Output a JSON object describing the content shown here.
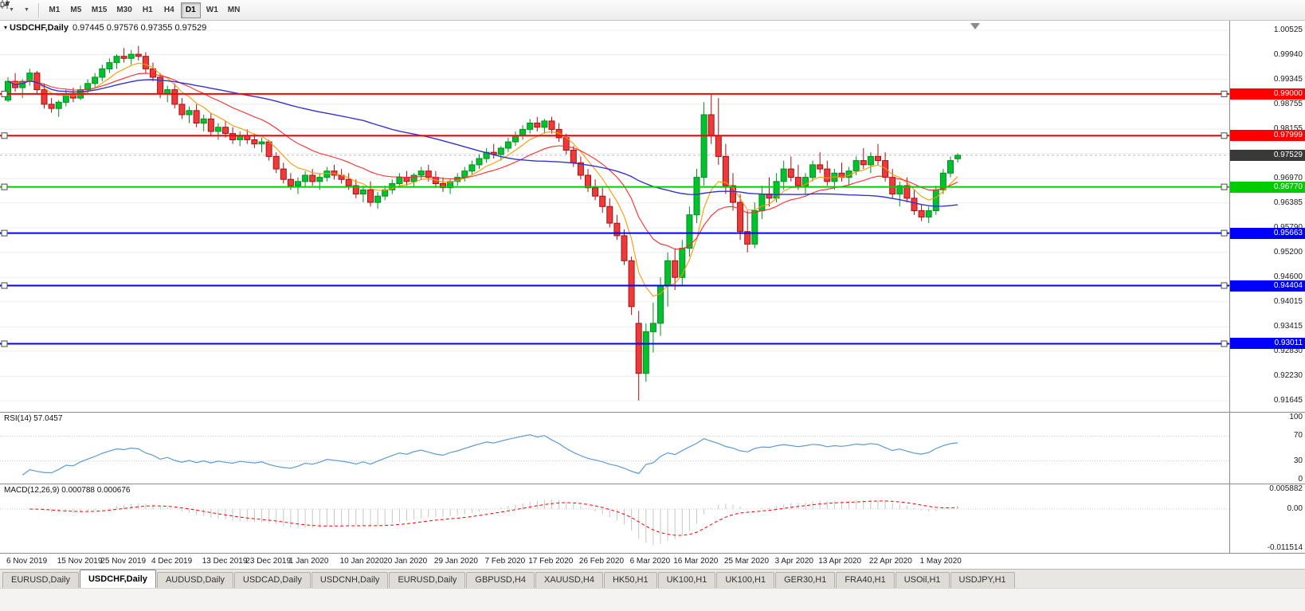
{
  "toolbar": {
    "icon_buttons": [
      {
        "icon": "line-chart-icon"
      },
      {
        "icon": "candlestick-chart-icon"
      }
    ],
    "timeframes": [
      {
        "label": "M1",
        "active": false
      },
      {
        "label": "M5",
        "active": false
      },
      {
        "label": "M15",
        "active": false
      },
      {
        "label": "M30",
        "active": false
      },
      {
        "label": "H1",
        "active": false
      },
      {
        "label": "H4",
        "active": false
      },
      {
        "label": "D1",
        "active": true
      },
      {
        "label": "W1",
        "active": false
      },
      {
        "label": "MN",
        "active": false
      }
    ]
  },
  "chart": {
    "title_symbol": "USDCHF,Daily",
    "title_ohlc": "0.97445 0.97576 0.97355 0.97529"
  },
  "chart_data": {
    "type": "candlestick",
    "symbol": "USDCHF",
    "timeframe": "Daily",
    "y_axis": {
      "max": 1.00525,
      "min": 0.91645,
      "labels": [
        "1.00525",
        "0.99940",
        "0.99345",
        "0.98755",
        "0.98155",
        "0.97570",
        "0.96970",
        "0.96385",
        "0.95790",
        "0.95200",
        "0.94600",
        "0.94015",
        "0.93415",
        "0.92830",
        "0.92230",
        "0.91645"
      ]
    },
    "x_labels": [
      {
        "i": 0,
        "t": "6 Nov 2019"
      },
      {
        "i": 7,
        "t": "15 Nov 2019"
      },
      {
        "i": 13,
        "t": "25 Nov 2019"
      },
      {
        "i": 20,
        "t": "4 Dec 2019"
      },
      {
        "i": 27,
        "t": "13 Dec 2019"
      },
      {
        "i": 33,
        "t": "23 Dec 2019"
      },
      {
        "i": 39,
        "t": "1 Jan 2020"
      },
      {
        "i": 46,
        "t": "10 Jan 2020"
      },
      {
        "i": 52,
        "t": "20 Jan 2020"
      },
      {
        "i": 59,
        "t": "29 Jan 2020"
      },
      {
        "i": 66,
        "t": "7 Feb 2020"
      },
      {
        "i": 72,
        "t": "17 Feb 2020"
      },
      {
        "i": 79,
        "t": "26 Feb 2020"
      },
      {
        "i": 86,
        "t": "6 Mar 2020"
      },
      {
        "i": 92,
        "t": "16 Mar 2020"
      },
      {
        "i": 99,
        "t": "25 Mar 2020"
      },
      {
        "i": 106,
        "t": "3 Apr 2020"
      },
      {
        "i": 112,
        "t": "13 Apr 2020"
      },
      {
        "i": 119,
        "t": "22 Apr 2020"
      },
      {
        "i": 126,
        "t": "1 May 2020"
      }
    ],
    "candle_colors": {
      "up_fill": "#00c22e",
      "up_stroke": "#008f1f",
      "down_fill": "#ed3b3b",
      "down_stroke": "#a81010"
    },
    "ohlc": [
      [
        0.9885,
        0.994,
        0.988,
        0.993
      ],
      [
        0.993,
        0.995,
        0.9905,
        0.9915
      ],
      [
        0.9915,
        0.9935,
        0.989,
        0.993
      ],
      [
        0.993,
        0.996,
        0.992,
        0.995
      ],
      [
        0.995,
        0.9955,
        0.99,
        0.991
      ],
      [
        0.991,
        0.9925,
        0.9865,
        0.9875
      ],
      [
        0.9875,
        0.989,
        0.9855,
        0.9865
      ],
      [
        0.9865,
        0.9885,
        0.9845,
        0.988
      ],
      [
        0.988,
        0.991,
        0.987,
        0.99
      ],
      [
        0.99,
        0.9915,
        0.988,
        0.989
      ],
      [
        0.989,
        0.992,
        0.9885,
        0.991
      ],
      [
        0.991,
        0.9935,
        0.99,
        0.9925
      ],
      [
        0.9925,
        0.995,
        0.9915,
        0.994
      ],
      [
        0.994,
        0.997,
        0.993,
        0.996
      ],
      [
        0.996,
        0.9985,
        0.995,
        0.9975
      ],
      [
        0.9975,
        0.9995,
        0.996,
        0.999
      ],
      [
        0.999,
        1.001,
        0.9975,
        0.9985
      ],
      [
        0.9985,
        1.0005,
        0.997,
        0.9995
      ],
      [
        0.9995,
        1.0015,
        0.998,
        0.999
      ],
      [
        0.999,
        1.0,
        0.995,
        0.996
      ],
      [
        0.996,
        0.9975,
        0.993,
        0.994
      ],
      [
        0.994,
        0.995,
        0.989,
        0.99
      ],
      [
        0.99,
        0.992,
        0.988,
        0.991
      ],
      [
        0.991,
        0.9925,
        0.9865,
        0.9875
      ],
      [
        0.9875,
        0.989,
        0.984,
        0.985
      ],
      [
        0.985,
        0.987,
        0.983,
        0.986
      ],
      [
        0.986,
        0.9875,
        0.982,
        0.983
      ],
      [
        0.983,
        0.985,
        0.981,
        0.984
      ],
      [
        0.984,
        0.9855,
        0.98,
        0.981
      ],
      [
        0.981,
        0.983,
        0.979,
        0.982
      ],
      [
        0.982,
        0.9835,
        0.9795,
        0.9805
      ],
      [
        0.9805,
        0.982,
        0.978,
        0.979
      ],
      [
        0.979,
        0.981,
        0.9775,
        0.98
      ],
      [
        0.98,
        0.9815,
        0.978,
        0.979
      ],
      [
        0.979,
        0.9805,
        0.977,
        0.978
      ],
      [
        0.978,
        0.9795,
        0.976,
        0.9785
      ],
      [
        0.9785,
        0.979,
        0.974,
        0.975
      ],
      [
        0.975,
        0.976,
        0.971,
        0.972
      ],
      [
        0.972,
        0.9735,
        0.9685,
        0.9695
      ],
      [
        0.9695,
        0.971,
        0.967,
        0.968
      ],
      [
        0.968,
        0.97,
        0.966,
        0.969
      ],
      [
        0.969,
        0.9715,
        0.9675,
        0.9705
      ],
      [
        0.9705,
        0.972,
        0.968,
        0.969
      ],
      [
        0.969,
        0.971,
        0.967,
        0.97
      ],
      [
        0.97,
        0.9725,
        0.969,
        0.9715
      ],
      [
        0.9715,
        0.973,
        0.9695,
        0.9705
      ],
      [
        0.9705,
        0.972,
        0.9685,
        0.9695
      ],
      [
        0.9695,
        0.971,
        0.967,
        0.968
      ],
      [
        0.968,
        0.9695,
        0.965,
        0.966
      ],
      [
        0.966,
        0.968,
        0.964,
        0.967
      ],
      [
        0.967,
        0.969,
        0.963,
        0.964
      ],
      [
        0.964,
        0.9665,
        0.9625,
        0.9655
      ],
      [
        0.9655,
        0.968,
        0.9645,
        0.967
      ],
      [
        0.967,
        0.9695,
        0.966,
        0.9685
      ],
      [
        0.9685,
        0.971,
        0.9675,
        0.97
      ],
      [
        0.97,
        0.9715,
        0.968,
        0.969
      ],
      [
        0.969,
        0.971,
        0.9675,
        0.9705
      ],
      [
        0.9705,
        0.9725,
        0.9695,
        0.9715
      ],
      [
        0.9715,
        0.973,
        0.969,
        0.97
      ],
      [
        0.97,
        0.9715,
        0.9675,
        0.9685
      ],
      [
        0.9685,
        0.97,
        0.9665,
        0.9675
      ],
      [
        0.9675,
        0.9695,
        0.966,
        0.969
      ],
      [
        0.969,
        0.971,
        0.968,
        0.97
      ],
      [
        0.97,
        0.9725,
        0.969,
        0.9715
      ],
      [
        0.9715,
        0.974,
        0.9705,
        0.973
      ],
      [
        0.973,
        0.9755,
        0.972,
        0.9745
      ],
      [
        0.9745,
        0.977,
        0.9735,
        0.976
      ],
      [
        0.976,
        0.978,
        0.9745,
        0.9755
      ],
      [
        0.9755,
        0.9775,
        0.974,
        0.977
      ],
      [
        0.977,
        0.9795,
        0.976,
        0.9785
      ],
      [
        0.9785,
        0.981,
        0.9775,
        0.98
      ],
      [
        0.98,
        0.9825,
        0.979,
        0.9815
      ],
      [
        0.9815,
        0.984,
        0.9805,
        0.983
      ],
      [
        0.983,
        0.9845,
        0.981,
        0.982
      ],
      [
        0.982,
        0.984,
        0.9805,
        0.9835
      ],
      [
        0.9835,
        0.9845,
        0.9805,
        0.9815
      ],
      [
        0.9815,
        0.983,
        0.9785,
        0.9795
      ],
      [
        0.9795,
        0.9805,
        0.9755,
        0.9765
      ],
      [
        0.9765,
        0.9775,
        0.9725,
        0.9735
      ],
      [
        0.9735,
        0.975,
        0.9695,
        0.9705
      ],
      [
        0.9705,
        0.972,
        0.9665,
        0.9675
      ],
      [
        0.9675,
        0.9695,
        0.9645,
        0.9655
      ],
      [
        0.9655,
        0.9675,
        0.9615,
        0.963
      ],
      [
        0.963,
        0.965,
        0.958,
        0.959
      ],
      [
        0.959,
        0.961,
        0.955,
        0.956
      ],
      [
        0.956,
        0.9575,
        0.949,
        0.95
      ],
      [
        0.95,
        0.951,
        0.937,
        0.939
      ],
      [
        0.935,
        0.938,
        0.9165,
        0.923
      ],
      [
        0.923,
        0.935,
        0.921,
        0.933
      ],
      [
        0.933,
        0.94,
        0.928,
        0.935
      ],
      [
        0.935,
        0.946,
        0.932,
        0.944
      ],
      [
        0.944,
        0.952,
        0.939,
        0.95
      ],
      [
        0.95,
        0.953,
        0.943,
        0.946
      ],
      [
        0.946,
        0.955,
        0.944,
        0.953
      ],
      [
        0.953,
        0.963,
        0.951,
        0.961
      ],
      [
        0.961,
        0.972,
        0.959,
        0.97
      ],
      [
        0.97,
        0.988,
        0.968,
        0.985
      ],
      [
        0.985,
        0.9901,
        0.978,
        0.98
      ],
      [
        0.98,
        0.989,
        0.973,
        0.975
      ],
      [
        0.975,
        0.978,
        0.966,
        0.968
      ],
      [
        0.968,
        0.971,
        0.962,
        0.964
      ],
      [
        0.964,
        0.966,
        0.955,
        0.957
      ],
      [
        0.957,
        0.962,
        0.952,
        0.954
      ],
      [
        0.954,
        0.964,
        0.953,
        0.962
      ],
      [
        0.962,
        0.968,
        0.96,
        0.966
      ],
      [
        0.966,
        0.97,
        0.963,
        0.965
      ],
      [
        0.965,
        0.971,
        0.964,
        0.969
      ],
      [
        0.969,
        0.974,
        0.967,
        0.972
      ],
      [
        0.972,
        0.975,
        0.969,
        0.97
      ],
      [
        0.97,
        0.973,
        0.967,
        0.968
      ],
      [
        0.968,
        0.971,
        0.966,
        0.97
      ],
      [
        0.97,
        0.974,
        0.969,
        0.973
      ],
      [
        0.973,
        0.976,
        0.971,
        0.972
      ],
      [
        0.972,
        0.974,
        0.968,
        0.969
      ],
      [
        0.969,
        0.972,
        0.967,
        0.971
      ],
      [
        0.971,
        0.9735,
        0.969,
        0.97
      ],
      [
        0.97,
        0.9725,
        0.968,
        0.9715
      ],
      [
        0.9715,
        0.975,
        0.9705,
        0.974
      ],
      [
        0.974,
        0.977,
        0.972,
        0.973
      ],
      [
        0.973,
        0.976,
        0.971,
        0.975
      ],
      [
        0.975,
        0.978,
        0.973,
        0.974
      ],
      [
        0.974,
        0.976,
        0.969,
        0.97
      ],
      [
        0.97,
        0.972,
        0.965,
        0.966
      ],
      [
        0.966,
        0.969,
        0.963,
        0.968
      ],
      [
        0.968,
        0.97,
        0.964,
        0.965
      ],
      [
        0.965,
        0.967,
        0.961,
        0.962
      ],
      [
        0.962,
        0.9635,
        0.9595,
        0.9605
      ],
      [
        0.9605,
        0.963,
        0.959,
        0.962
      ],
      [
        0.962,
        0.968,
        0.961,
        0.967
      ],
      [
        0.967,
        0.972,
        0.966,
        0.971
      ],
      [
        0.971,
        0.975,
        0.97,
        0.974
      ],
      [
        0.97445,
        0.97576,
        0.97355,
        0.97529
      ]
    ],
    "moving_averages": [
      {
        "period": 7,
        "method": "ema",
        "color": "#ff9900",
        "name": "ma-fast"
      },
      {
        "period": 18,
        "method": "ema",
        "color": "#ff2a2a",
        "name": "ma-mid"
      },
      {
        "period": 50,
        "method": "sma",
        "color": "#3333cc",
        "name": "ma-slow"
      }
    ],
    "hlines": [
      {
        "value": 0.99,
        "label": "0.99000",
        "color": "#ff0000"
      },
      {
        "value": 0.97999,
        "label": "0.97999",
        "color": "#ff0000"
      },
      {
        "value": 0.9677,
        "label": "0.96770",
        "color": "#00cc00"
      },
      {
        "value": 0.95663,
        "label": "0.95663",
        "color": "#0000ff"
      },
      {
        "value": 0.94404,
        "label": "0.94404",
        "color": "#0000ff"
      },
      {
        "value": 0.93011,
        "label": "0.93011",
        "color": "#0000ff"
      }
    ],
    "current_price": {
      "value": 0.97529,
      "label": "0.97529",
      "bg": "#393939"
    },
    "indicators": {
      "rsi": {
        "title": "RSI(14)",
        "value": "57.0457",
        "color": "#5b9bd5",
        "levels": [
          70,
          30
        ],
        "scale_labels": [
          100,
          70,
          30,
          0
        ]
      },
      "macd": {
        "title": "MACD(12,26,9)",
        "main_value": "0.000788",
        "signal_value": "0.000676",
        "hist_color": "#c6c6c6",
        "signal_color": "#ff0000",
        "scale_max": 0.005882,
        "scale_min": -0.011514,
        "scale_labels": [
          "0.005882",
          "0.00",
          "-0.011514"
        ]
      }
    }
  },
  "tabs": [
    {
      "label": "EURUSD,Daily",
      "active": false
    },
    {
      "label": "USDCHF,Daily",
      "active": true
    },
    {
      "label": "AUDUSD,Daily",
      "active": false
    },
    {
      "label": "USDCAD,Daily",
      "active": false
    },
    {
      "label": "USDCNH,Daily",
      "active": false
    },
    {
      "label": "EURUSD,Daily",
      "active": false
    },
    {
      "label": "GBPUSD,H4",
      "active": false
    },
    {
      "label": "XAUUSD,H4",
      "active": false
    },
    {
      "label": "HK50,H1",
      "active": false
    },
    {
      "label": "UK100,H1",
      "active": false
    },
    {
      "label": "UK100,H1",
      "active": false
    },
    {
      "label": "GER30,H1",
      "active": false
    },
    {
      "label": "FRA40,H1",
      "active": false
    },
    {
      "label": "USOil,H1",
      "active": false
    },
    {
      "label": "USDJPY,H1",
      "active": false
    }
  ]
}
